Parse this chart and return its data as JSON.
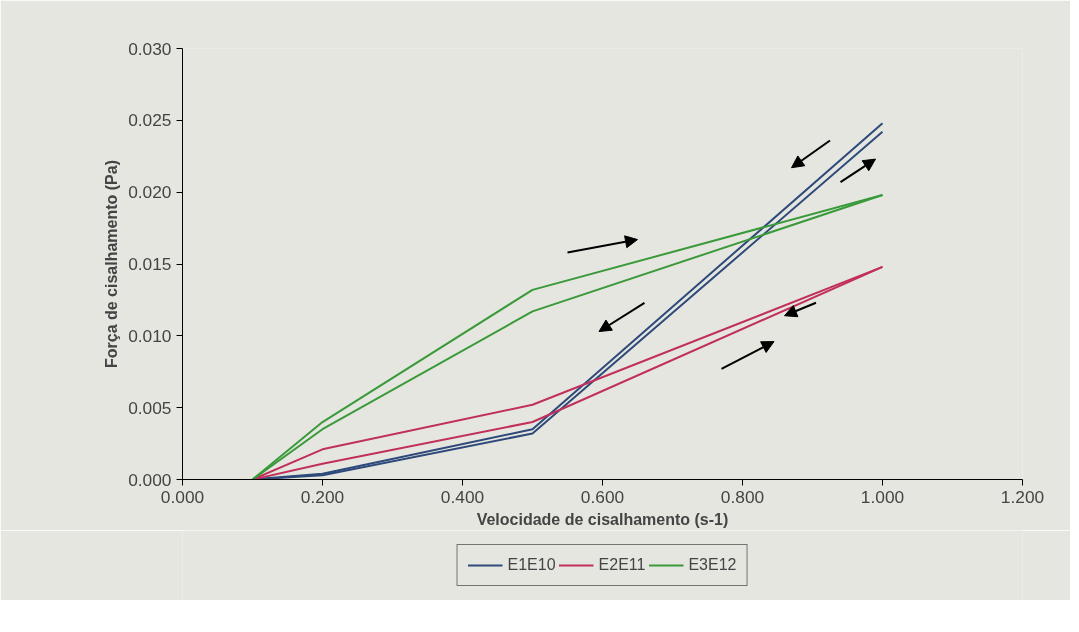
{
  "chart_data": {
    "type": "line",
    "xlabel": "Velocidade de cisalhamento (s-1)",
    "ylabel": "Força de cisalhamento (Pa)",
    "xlim": [
      0,
      1.2
    ],
    "xticks": [
      {
        "value": 0,
        "label": "0.000"
      },
      {
        "value": 0.2,
        "label": "0.200"
      },
      {
        "value": 0.4,
        "label": "0.400"
      },
      {
        "value": 0.6,
        "label": "0.600"
      },
      {
        "value": 0.8,
        "label": "0.800"
      },
      {
        "value": 1.0,
        "label": "1.000"
      },
      {
        "value": 1.2,
        "label": "1.200"
      }
    ],
    "ylim": [
      0,
      0.03
    ],
    "yticks": [
      {
        "value": 0,
        "label": "0.000"
      },
      {
        "value": 0.005,
        "label": "0.005"
      },
      {
        "value": 0.01,
        "label": "0.010"
      },
      {
        "value": 0.015,
        "label": "0.015"
      },
      {
        "value": 0.02,
        "label": "0.020"
      },
      {
        "value": 0.025,
        "label": "0.025"
      },
      {
        "value": 0.03,
        "label": "0.030"
      }
    ],
    "x": [
      0.1,
      0.2,
      0.5,
      1.0
    ],
    "series": [
      {
        "name": "E1E10",
        "color": "#2e4a7a",
        "values": [
          0,
          0.0003,
          0.0032,
          0.0242
        ]
      },
      {
        "color": "#2e4a7a",
        "values": [
          0,
          0.0004,
          0.0035,
          0.0248
        ]
      },
      {
        "name": "E2E11",
        "color": "#c0305a",
        "values": [
          0,
          0.0021,
          0.0052,
          0.0148
        ]
      },
      {
        "color": "#c0305a",
        "values": [
          0,
          0.0011,
          0.004,
          0.0148
        ]
      },
      {
        "name": "E3E12",
        "color": "#3a9a3a",
        "values": [
          0,
          0.004,
          0.0132,
          0.0198
        ]
      },
      {
        "color": "#3a9a3a",
        "values": [
          0,
          0.0035,
          0.0117,
          0.0198
        ]
      }
    ],
    "legend": "bottom",
    "marker": "none",
    "line_style": "solid"
  }
}
